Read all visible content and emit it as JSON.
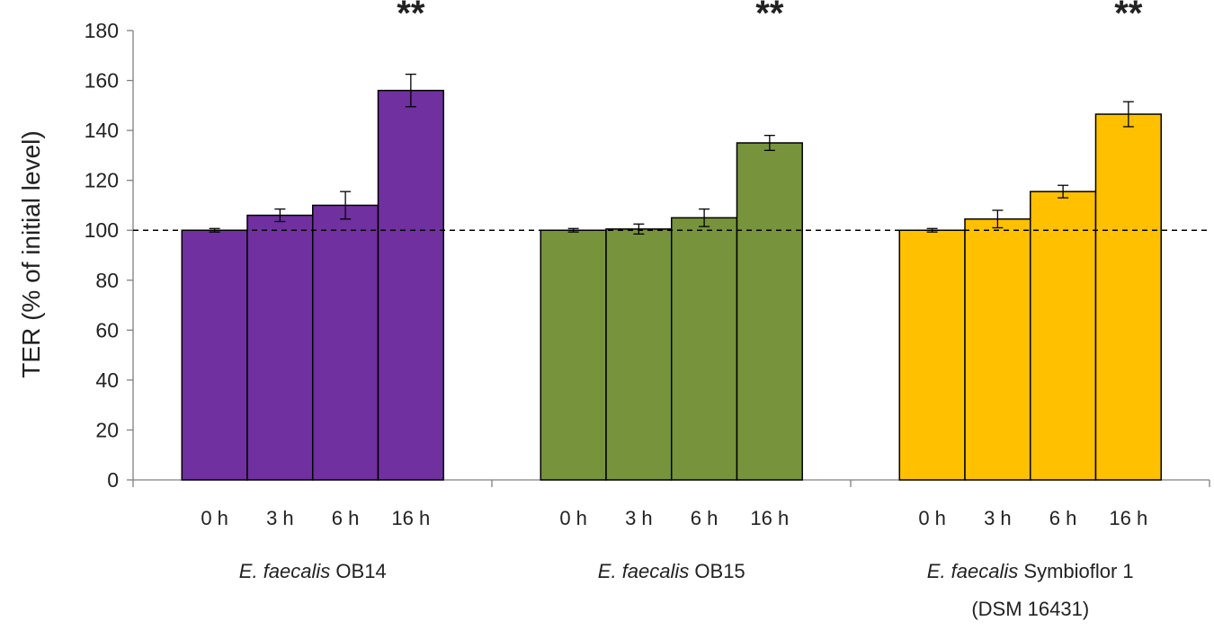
{
  "chart_data": {
    "type": "bar",
    "title": "",
    "xlabel": "",
    "ylabel": "TER (% of initial level)",
    "ylim": [
      0,
      180
    ],
    "yticks": [
      0,
      20,
      40,
      60,
      80,
      100,
      120,
      140,
      160,
      180
    ],
    "reference_line": 100,
    "grid": false,
    "categories": [
      "0 h",
      "3 h",
      "6 h",
      "16 h"
    ],
    "groups": [
      {
        "name_italic": "E. faecalis",
        "name_rest": " OB14",
        "name_line2": "",
        "color": "#7030A0",
        "values": [
          100,
          106,
          110,
          156
        ],
        "errors": [
          0.7,
          2.5,
          5.5,
          6.5
        ],
        "significance": "**"
      },
      {
        "name_italic": "E. faecalis",
        "name_rest": " OB15",
        "name_line2": "",
        "color": "#77933C",
        "values": [
          100,
          100.5,
          105,
          135
        ],
        "errors": [
          0.7,
          2,
          3.5,
          3
        ],
        "significance": "**"
      },
      {
        "name_italic": "E. faecalis",
        "name_rest": " Symbioflor 1",
        "name_line2": "(DSM 16431)",
        "color": "#FFC000",
        "values": [
          100,
          104.5,
          115.5,
          146.5
        ],
        "errors": [
          0.7,
          3.5,
          2.5,
          5
        ],
        "significance": "**"
      }
    ]
  }
}
